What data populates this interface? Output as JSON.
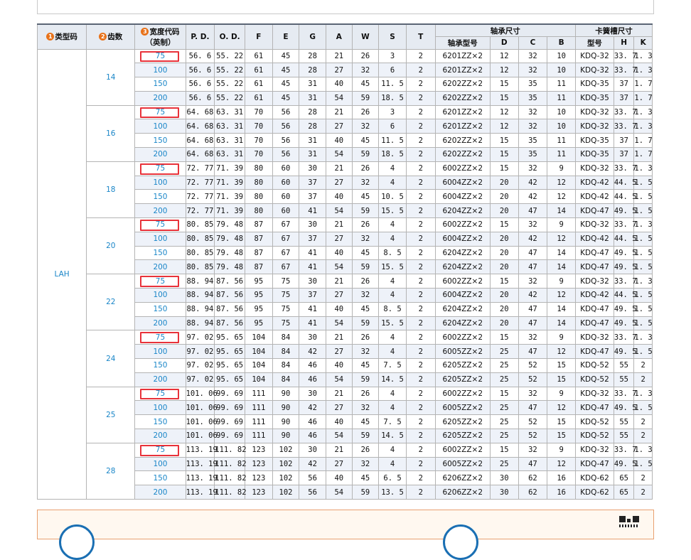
{
  "headers": {
    "type_code": "类型码",
    "teeth": "齿数",
    "width_code_1": "宽度代码",
    "width_code_2": "（英制）",
    "pd": "P. D.",
    "od": "O. D.",
    "f": "F",
    "e": "E",
    "g": "G",
    "a": "A",
    "w": "W",
    "s": "S",
    "t": "T",
    "bearing_group": "轴承尺寸",
    "bearing_model": "轴承型号",
    "d": "D",
    "c": "C",
    "b": "B",
    "circlip_group": "卡簧槽尺寸",
    "circlip_model": "型号",
    "h": "H",
    "k": "K"
  },
  "type_code": "LAH",
  "groups": [
    {
      "teeth": "14",
      "rows": [
        [
          "75",
          "56. 6",
          "55. 22",
          "61",
          "45",
          "28",
          "21",
          "26",
          "3",
          "2",
          "6201ZZ×2",
          "12",
          "32",
          "10",
          "KDQ-32",
          "33. 7",
          "1. 3"
        ],
        [
          "100",
          "56. 6",
          "55. 22",
          "61",
          "45",
          "28",
          "27",
          "32",
          "6",
          "2",
          "6201ZZ×2",
          "12",
          "32",
          "10",
          "KDQ-32",
          "33. 7",
          "1. 3"
        ],
        [
          "150",
          "56. 6",
          "55. 22",
          "61",
          "45",
          "31",
          "40",
          "45",
          "11. 5",
          "2",
          "6202ZZ×2",
          "15",
          "35",
          "11",
          "KDQ-35",
          "37",
          "1. 7"
        ],
        [
          "200",
          "56. 6",
          "55. 22",
          "61",
          "45",
          "31",
          "54",
          "59",
          "18. 5",
          "2",
          "6202ZZ×2",
          "15",
          "35",
          "11",
          "KDQ-35",
          "37",
          "1. 7"
        ]
      ]
    },
    {
      "teeth": "16",
      "rows": [
        [
          "75",
          "64. 68",
          "63. 31",
          "70",
          "56",
          "28",
          "21",
          "26",
          "3",
          "2",
          "6201ZZ×2",
          "12",
          "32",
          "10",
          "KDQ-32",
          "33. 7",
          "1. 3"
        ],
        [
          "100",
          "64. 68",
          "63. 31",
          "70",
          "56",
          "28",
          "27",
          "32",
          "6",
          "2",
          "6201ZZ×2",
          "12",
          "32",
          "10",
          "KDQ-32",
          "33. 7",
          "1. 3"
        ],
        [
          "150",
          "64. 68",
          "63. 31",
          "70",
          "56",
          "31",
          "40",
          "45",
          "11. 5",
          "2",
          "6202ZZ×2",
          "15",
          "35",
          "11",
          "KDQ-35",
          "37",
          "1. 7"
        ],
        [
          "200",
          "64. 68",
          "63. 31",
          "70",
          "56",
          "31",
          "54",
          "59",
          "18. 5",
          "2",
          "6202ZZ×2",
          "15",
          "35",
          "11",
          "KDQ-35",
          "37",
          "1. 7"
        ]
      ]
    },
    {
      "teeth": "18",
      "rows": [
        [
          "75",
          "72. 77",
          "71. 39",
          "80",
          "60",
          "30",
          "21",
          "26",
          "4",
          "2",
          "6002ZZ×2",
          "15",
          "32",
          "9",
          "KDQ-32",
          "33. 7",
          "1. 3"
        ],
        [
          "100",
          "72. 77",
          "71. 39",
          "80",
          "60",
          "37",
          "27",
          "32",
          "4",
          "2",
          "6004ZZ×2",
          "20",
          "42",
          "12",
          "KDQ-42",
          "44. 5",
          "1. 5"
        ],
        [
          "150",
          "72. 77",
          "71. 39",
          "80",
          "60",
          "37",
          "40",
          "45",
          "10. 5",
          "2",
          "6004ZZ×2",
          "20",
          "42",
          "12",
          "KDQ-42",
          "44. 5",
          "1. 5"
        ],
        [
          "200",
          "72. 77",
          "71. 39",
          "80",
          "60",
          "41",
          "54",
          "59",
          "15. 5",
          "2",
          "6204ZZ×2",
          "20",
          "47",
          "14",
          "KDQ-47",
          "49. 5",
          "1. 5"
        ]
      ]
    },
    {
      "teeth": "20",
      "rows": [
        [
          "75",
          "80. 85",
          "79. 48",
          "87",
          "67",
          "30",
          "21",
          "26",
          "4",
          "2",
          "6002ZZ×2",
          "15",
          "32",
          "9",
          "KDQ-32",
          "33. 7",
          "1. 3"
        ],
        [
          "100",
          "80. 85",
          "79. 48",
          "87",
          "67",
          "37",
          "27",
          "32",
          "4",
          "2",
          "6004ZZ×2",
          "20",
          "42",
          "12",
          "KDQ-42",
          "44. 5",
          "1. 5"
        ],
        [
          "150",
          "80. 85",
          "79. 48",
          "87",
          "67",
          "41",
          "40",
          "45",
          "8. 5",
          "2",
          "6204ZZ×2",
          "20",
          "47",
          "14",
          "KDQ-47",
          "49. 5",
          "1. 5"
        ],
        [
          "200",
          "80. 85",
          "79. 48",
          "87",
          "67",
          "41",
          "54",
          "59",
          "15. 5",
          "2",
          "6204ZZ×2",
          "20",
          "47",
          "14",
          "KDQ-47",
          "49. 5",
          "1. 5"
        ]
      ]
    },
    {
      "teeth": "22",
      "rows": [
        [
          "75",
          "88. 94",
          "87. 56",
          "95",
          "75",
          "30",
          "21",
          "26",
          "4",
          "2",
          "6002ZZ×2",
          "15",
          "32",
          "9",
          "KDQ-32",
          "33. 7",
          "1. 3"
        ],
        [
          "100",
          "88. 94",
          "87. 56",
          "95",
          "75",
          "37",
          "27",
          "32",
          "4",
          "2",
          "6004ZZ×2",
          "20",
          "42",
          "12",
          "KDQ-42",
          "44. 5",
          "1. 5"
        ],
        [
          "150",
          "88. 94",
          "87. 56",
          "95",
          "75",
          "41",
          "40",
          "45",
          "8. 5",
          "2",
          "6204ZZ×2",
          "20",
          "47",
          "14",
          "KDQ-47",
          "49. 5",
          "1. 5"
        ],
        [
          "200",
          "88. 94",
          "87. 56",
          "95",
          "75",
          "41",
          "54",
          "59",
          "15. 5",
          "2",
          "6204ZZ×2",
          "20",
          "47",
          "14",
          "KDQ-47",
          "49. 5",
          "1. 5"
        ]
      ]
    },
    {
      "teeth": "24",
      "rows": [
        [
          "75",
          "97. 02",
          "95. 65",
          "104",
          "84",
          "30",
          "21",
          "26",
          "4",
          "2",
          "6002ZZ×2",
          "15",
          "32",
          "9",
          "KDQ-32",
          "33. 7",
          "1. 3"
        ],
        [
          "100",
          "97. 02",
          "95. 65",
          "104",
          "84",
          "42",
          "27",
          "32",
          "4",
          "2",
          "6005ZZ×2",
          "25",
          "47",
          "12",
          "KDQ-47",
          "49. 5",
          "1. 5"
        ],
        [
          "150",
          "97. 02",
          "95. 65",
          "104",
          "84",
          "46",
          "40",
          "45",
          "7. 5",
          "2",
          "6205ZZ×2",
          "25",
          "52",
          "15",
          "KDQ-52",
          "55",
          "2"
        ],
        [
          "200",
          "97. 02",
          "95. 65",
          "104",
          "84",
          "46",
          "54",
          "59",
          "14. 5",
          "2",
          "6205ZZ×2",
          "25",
          "52",
          "15",
          "KDQ-52",
          "55",
          "2"
        ]
      ]
    },
    {
      "teeth": "25",
      "rows": [
        [
          "75",
          "101. 06",
          "99. 69",
          "111",
          "90",
          "30",
          "21",
          "26",
          "4",
          "2",
          "6002ZZ×2",
          "15",
          "32",
          "9",
          "KDQ-32",
          "33. 7",
          "1. 3"
        ],
        [
          "100",
          "101. 06",
          "99. 69",
          "111",
          "90",
          "42",
          "27",
          "32",
          "4",
          "2",
          "6005ZZ×2",
          "25",
          "47",
          "12",
          "KDQ-47",
          "49. 5",
          "1. 5"
        ],
        [
          "150",
          "101. 06",
          "99. 69",
          "111",
          "90",
          "46",
          "40",
          "45",
          "7. 5",
          "2",
          "6205ZZ×2",
          "25",
          "52",
          "15",
          "KDQ-52",
          "55",
          "2"
        ],
        [
          "200",
          "101. 06",
          "99. 69",
          "111",
          "90",
          "46",
          "54",
          "59",
          "14. 5",
          "2",
          "6205ZZ×2",
          "25",
          "52",
          "15",
          "KDQ-52",
          "55",
          "2"
        ]
      ]
    },
    {
      "teeth": "28",
      "rows": [
        [
          "75",
          "113. 19",
          "111. 82",
          "123",
          "102",
          "30",
          "21",
          "26",
          "4",
          "2",
          "6002ZZ×2",
          "15",
          "32",
          "9",
          "KDQ-32",
          "33. 7",
          "1. 3"
        ],
        [
          "100",
          "113. 19",
          "111. 82",
          "123",
          "102",
          "42",
          "27",
          "32",
          "4",
          "2",
          "6005ZZ×2",
          "25",
          "47",
          "12",
          "KDQ-47",
          "49. 5",
          "1. 5"
        ],
        [
          "150",
          "113. 19",
          "111. 82",
          "123",
          "102",
          "56",
          "40",
          "45",
          "6. 5",
          "2",
          "6206ZZ×2",
          "30",
          "62",
          "16",
          "KDQ-62",
          "65",
          "2"
        ],
        [
          "200",
          "113. 19",
          "111. 82",
          "123",
          "102",
          "56",
          "54",
          "59",
          "13. 5",
          "2",
          "6206ZZ×2",
          "30",
          "62",
          "16",
          "KDQ-62",
          "65",
          "2"
        ]
      ]
    }
  ],
  "highlighted_width": "75",
  "colors": {
    "accent_blue": "#1a86c8",
    "highlight_red": "#e8323a",
    "badge_orange": "#e8721a",
    "header_bg": "#e6ebf2",
    "stripe_bg": "#eef2f9"
  }
}
